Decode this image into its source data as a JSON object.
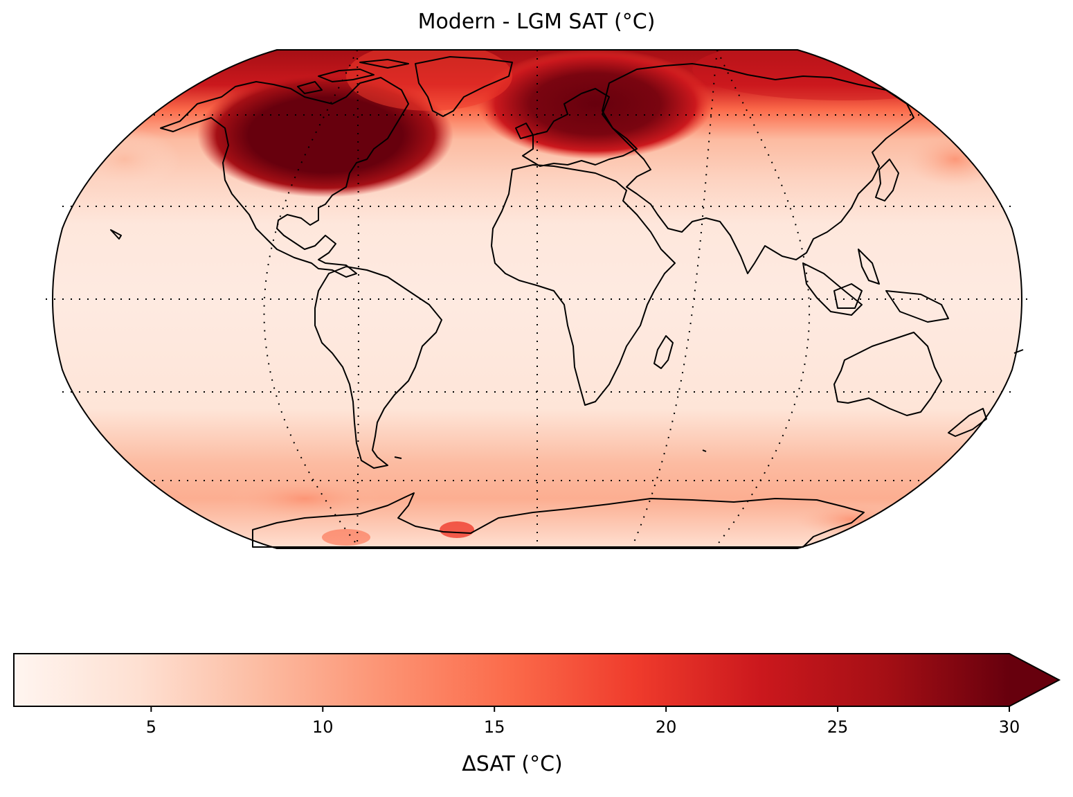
{
  "title": "Modern - LGM SAT (∘C)",
  "title_display": "Modern - LGM SAT (°C)",
  "map": {
    "projection": "Robinson",
    "variable": "Surface air temperature difference",
    "graticule": "dotted",
    "coastlines": "black"
  },
  "colorbar": {
    "label": "ΔSAT (°C)",
    "colormap": "Reds",
    "vmin": 1,
    "vmax": 30,
    "extend": "max",
    "ticks": [
      "5",
      "10",
      "15",
      "20",
      "25",
      "30"
    ],
    "tick_values": [
      5,
      10,
      15,
      20,
      25,
      30
    ],
    "colors": [
      "#fff5f0",
      "#fee0d2",
      "#fcbba1",
      "#fc9272",
      "#fb6a4a",
      "#ef3b2c",
      "#cb181d",
      "#a50f15",
      "#67000d"
    ]
  }
}
